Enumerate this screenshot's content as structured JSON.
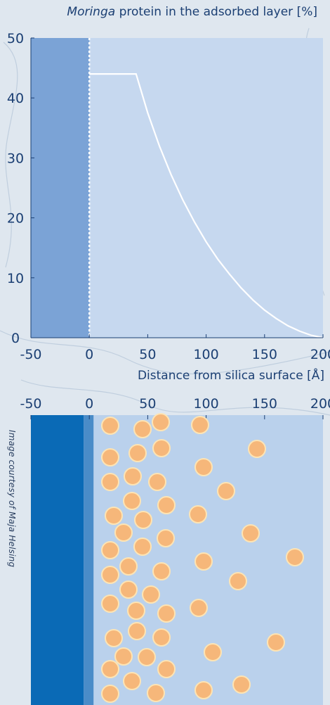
{
  "chart_data": {
    "type": "line",
    "title_italic": "Moringa",
    "title_rest": " protein in the adsorbed layer [%]",
    "xlabel": "Distance from silica surface [Å]",
    "xlim": [
      -50,
      200
    ],
    "ylim": [
      0,
      50
    ],
    "x_ticks": [
      "-50",
      "0",
      "50",
      "100",
      "150",
      "200"
    ],
    "y_ticks": [
      "0",
      "10",
      "20",
      "30",
      "40",
      "50"
    ],
    "surface_x": 0,
    "series": [
      {
        "x": [
          0,
          40,
          50,
          60,
          70,
          80,
          90,
          100,
          110,
          120,
          130,
          140,
          150,
          160,
          170,
          180,
          190,
          200
        ],
        "y": [
          44,
          44,
          37.5,
          32,
          27.2,
          23,
          19.3,
          16,
          13.1,
          10.6,
          8.3,
          6.3,
          4.6,
          3.2,
          2,
          1.1,
          0.4,
          0
        ]
      }
    ]
  },
  "illustration": {
    "x_ticks": [
      "-50",
      "0",
      "50",
      "100",
      "150",
      "200"
    ],
    "credit": "Image courtesy of Maja Helsing"
  },
  "colors": {
    "plot_bg": "#c6d8ef",
    "silica_fill": "#7ba3d6",
    "curve": "#ffffff",
    "text": "#1b3f73",
    "illus_bg": "#bad1ec",
    "silica_dark": "#0a6ab6",
    "particle": "#f6b77a"
  }
}
